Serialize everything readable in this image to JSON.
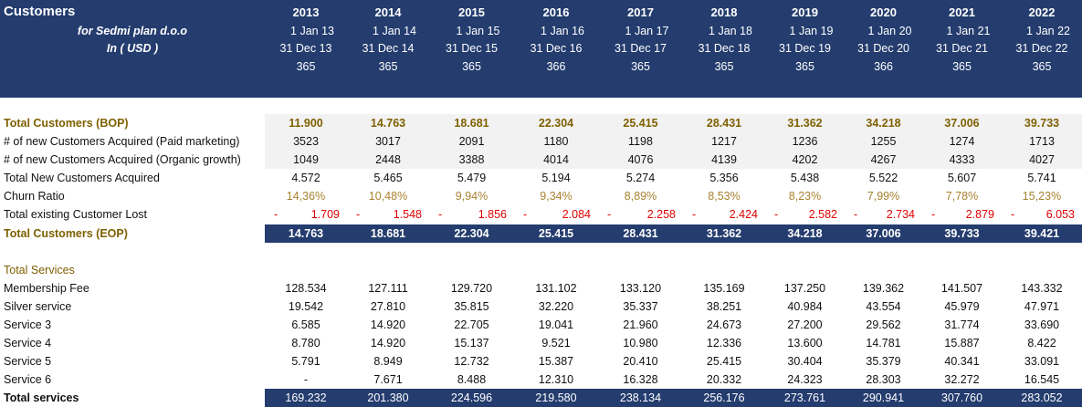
{
  "header": {
    "title": "Customers",
    "subtitle": "for Sedmi plan d.o.o",
    "currency": "In ( USD )",
    "years": [
      "2013",
      "2014",
      "2015",
      "2016",
      "2017",
      "2018",
      "2019",
      "2020",
      "2021",
      "2022"
    ],
    "start_dates": [
      "1 Jan 13",
      "1 Jan 14",
      "1 Jan 15",
      "1 Jan 16",
      "1 Jan 17",
      "1 Jan 18",
      "1 Jan 19",
      "1 Jan 20",
      "1 Jan 21",
      "1 Jan 22"
    ],
    "end_dates": [
      "31 Dec 13",
      "31 Dec 14",
      "31 Dec 15",
      "31 Dec 16",
      "31 Dec 17",
      "31 Dec 18",
      "31 Dec 19",
      "31 Dec 20",
      "31 Dec 21",
      "31 Dec 22"
    ],
    "days": [
      "365",
      "365",
      "365",
      "366",
      "365",
      "365",
      "365",
      "366",
      "365",
      "365"
    ]
  },
  "customers": [
    {
      "label": "Total Customers (BOP)",
      "style": "grey gold",
      "values": [
        "11.900",
        "14.763",
        "18.681",
        "22.304",
        "25.415",
        "28.431",
        "31.362",
        "34.218",
        "37.006",
        "39.733"
      ]
    },
    {
      "label": "# of new Customers Acquired (Paid marketing)",
      "style": "grey",
      "values": [
        "3523",
        "3017",
        "2091",
        "1180",
        "1198",
        "1217",
        "1236",
        "1255",
        "1274",
        "1713"
      ]
    },
    {
      "label": "# of new Customers Acquired (Organic growth)",
      "style": "grey",
      "values": [
        "1049",
        "2448",
        "3388",
        "4014",
        "4076",
        "4139",
        "4202",
        "4267",
        "4333",
        "4027"
      ]
    },
    {
      "label": "Total New Customers Acquired",
      "style": "",
      "values": [
        "4.572",
        "5.465",
        "5.479",
        "5.194",
        "5.274",
        "5.356",
        "5.438",
        "5.522",
        "5.607",
        "5.741"
      ]
    },
    {
      "label": "Churn Ratio",
      "style": "churn",
      "values": [
        "14,36%",
        "10,48%",
        "9,94%",
        "9,34%",
        "8,89%",
        "8,53%",
        "8,23%",
        "7,99%",
        "7,78%",
        "15,23%"
      ]
    },
    {
      "label": "Total existing Customer Lost",
      "style": "lost",
      "sign": "-",
      "values": [
        "1.709",
        "1.548",
        "1.856",
        "2.084",
        "2.258",
        "2.424",
        "2.582",
        "2.734",
        "2.879",
        "6.053"
      ]
    },
    {
      "label": "Total Customers (EOP)",
      "style": "navy gold",
      "values": [
        "14.763",
        "18.681",
        "22.304",
        "25.415",
        "28.431",
        "31.362",
        "34.218",
        "37.006",
        "39.733",
        "39.421"
      ]
    }
  ],
  "services_heading": "Total Services",
  "services": [
    {
      "label": "Membership Fee",
      "style": "",
      "values": [
        "128.534",
        "127.111",
        "129.720",
        "131.102",
        "133.120",
        "135.169",
        "137.250",
        "139.362",
        "141.507",
        "143.332"
      ]
    },
    {
      "label": "Silver service",
      "style": "",
      "values": [
        "19.542",
        "27.810",
        "35.815",
        "32.220",
        "35.337",
        "38.251",
        "40.984",
        "43.554",
        "45.979",
        "47.971"
      ]
    },
    {
      "label": "Service 3",
      "style": "",
      "values": [
        "6.585",
        "14.920",
        "22.705",
        "19.041",
        "21.960",
        "24.673",
        "27.200",
        "29.562",
        "31.774",
        "33.690"
      ]
    },
    {
      "label": "Service 4",
      "style": "",
      "values": [
        "8.780",
        "14.920",
        "15.137",
        "9.521",
        "10.980",
        "12.336",
        "13.600",
        "14.781",
        "15.887",
        "8.422"
      ]
    },
    {
      "label": "Service 5",
      "style": "",
      "values": [
        "5.791",
        "8.949",
        "12.732",
        "15.387",
        "20.410",
        "25.415",
        "30.404",
        "35.379",
        "40.341",
        "33.091"
      ]
    },
    {
      "label": "Service 6",
      "style": "",
      "values": [
        "-",
        "7.671",
        "8.488",
        "12.310",
        "16.328",
        "20.332",
        "24.323",
        "28.303",
        "32.272",
        "16.545"
      ]
    },
    {
      "label": "Total services",
      "style": "navy boldlbl",
      "values": [
        "169.232",
        "201.380",
        "224.596",
        "219.580",
        "238.134",
        "256.176",
        "273.761",
        "290.941",
        "307.760",
        "283.052"
      ]
    }
  ]
}
